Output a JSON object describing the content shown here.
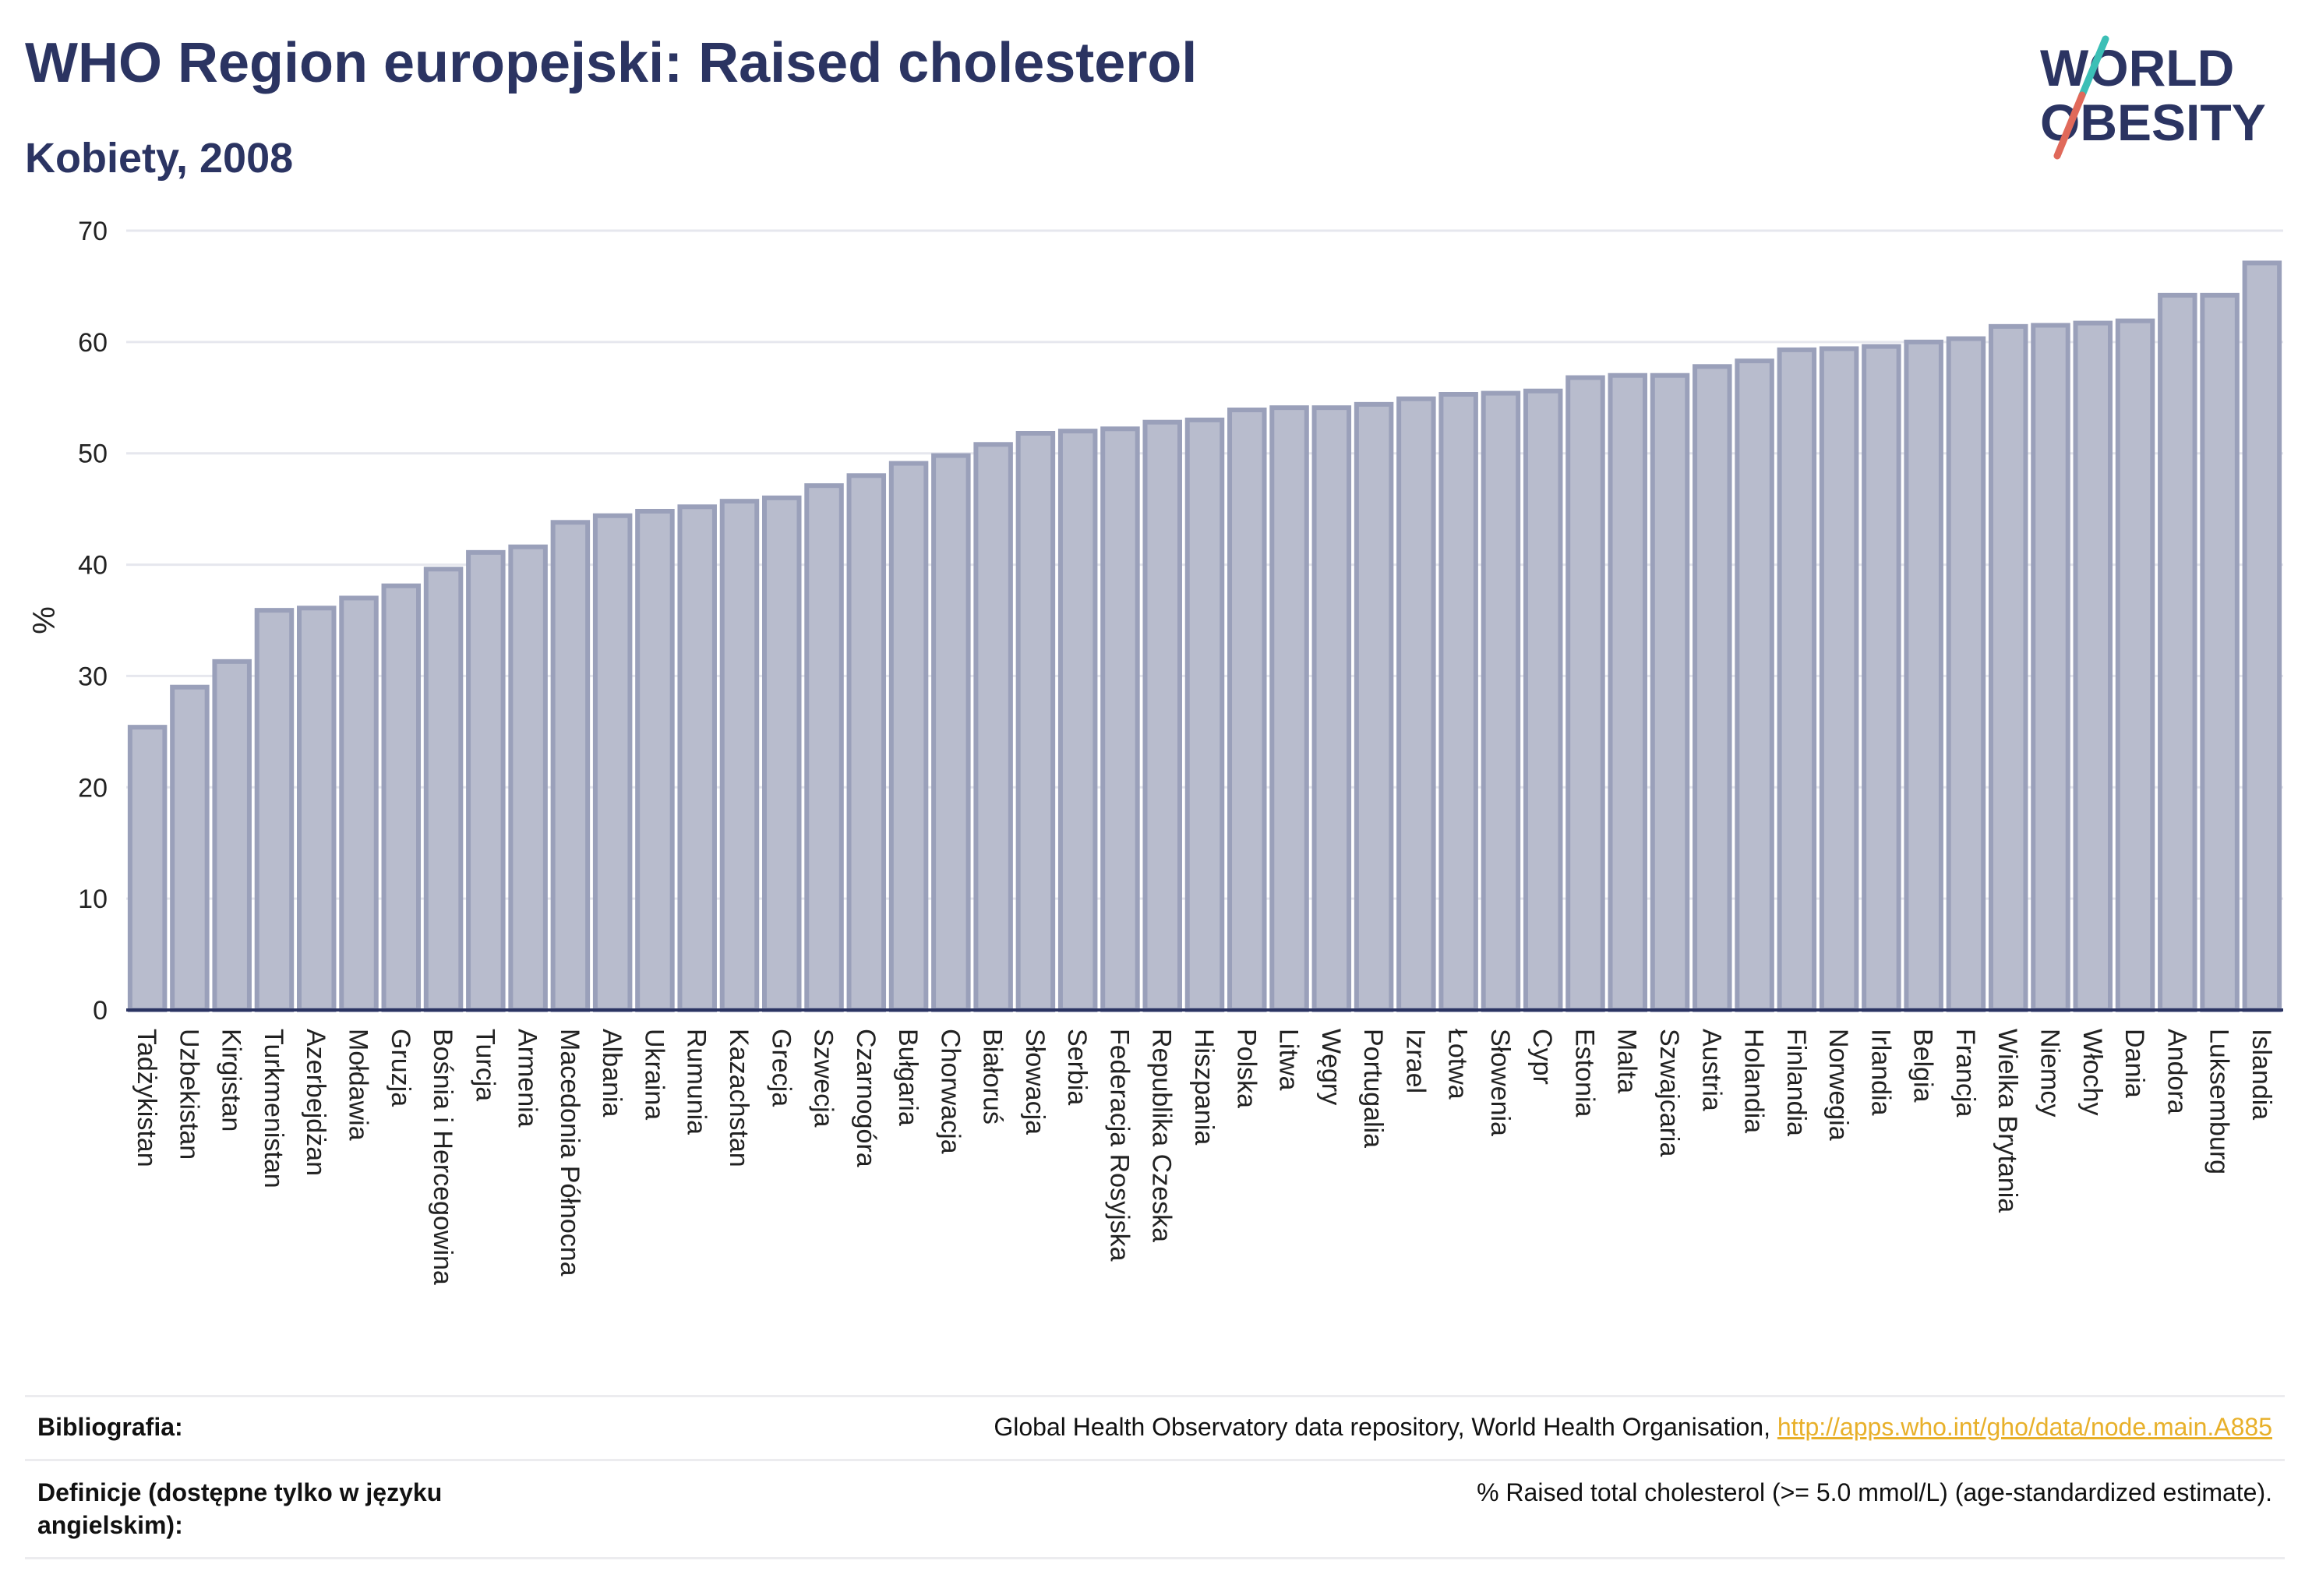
{
  "header": {
    "title": "WHO Region europejski: Raised cholesterol",
    "subtitle": "Kobiety, 2008"
  },
  "logo": {
    "line1": "WORLD",
    "line2": "OBESITY"
  },
  "chart_data": {
    "type": "bar",
    "ylabel": "%",
    "ylim": [
      0,
      70
    ],
    "yticks": [
      0,
      10,
      20,
      30,
      40,
      50,
      60,
      70
    ],
    "grid": true,
    "colors": {
      "bar_fill": "#b8bccd",
      "bar_stroke": "#9aa0ba",
      "axis": "#2b3462",
      "grid": "#e6e7ee"
    },
    "categories": [
      "Tadżykistan",
      "Uzbekistan",
      "Kirgistan",
      "Turkmenistan",
      "Azerbejdżan",
      "Mołdawia",
      "Gruzja",
      "Bośnia i Hercegowina",
      "Turcja",
      "Armenia",
      "Macedonia Północna",
      "Albania",
      "Ukraina",
      "Rumunia",
      "Kazachstan",
      "Grecja",
      "Szwecja",
      "Czarnogóra",
      "Bułgaria",
      "Chorwacja",
      "Białoruś",
      "Słowacja",
      "Serbia",
      "Federacja Rosyjska",
      "Republika Czeska",
      "Hiszpania",
      "Polska",
      "Litwa",
      "Węgry",
      "Portugalia",
      "Izrael",
      "Łotwa",
      "Słowenia",
      "Cypr",
      "Estonia",
      "Malta",
      "Szwajcaria",
      "Austria",
      "Holandia",
      "Finlandia",
      "Norwegia",
      "Irlandia",
      "Belgia",
      "Francja",
      "Wielka Brytania",
      "Niemcy",
      "Włochy",
      "Dania",
      "Andora",
      "Luksemburg",
      "Islandia"
    ],
    "values": [
      25.4,
      29.0,
      31.3,
      35.9,
      36.1,
      37.0,
      38.1,
      39.6,
      41.1,
      41.6,
      43.8,
      44.4,
      44.8,
      45.2,
      45.7,
      46.0,
      47.1,
      48.0,
      49.1,
      49.8,
      50.8,
      51.8,
      52.0,
      52.2,
      52.8,
      53.0,
      53.9,
      54.1,
      54.1,
      54.4,
      54.9,
      55.3,
      55.4,
      55.6,
      56.8,
      57.0,
      57.0,
      57.8,
      58.3,
      59.3,
      59.4,
      59.6,
      60.0,
      60.3,
      61.4,
      61.5,
      61.7,
      61.9,
      64.2,
      64.2,
      67.1
    ]
  },
  "footer": {
    "bibliography_label": "Bibliografia:",
    "bibliography_text": "Global Health Observatory data repository, World Health Organisation, ",
    "bibliography_link": "http://apps.who.int/gho/data/node.main.A885",
    "definitions_label": "Definicje (dostępne tylko w języku angielskim):",
    "definitions_text": "% Raised total cholesterol (>= 5.0 mmol/L) (age-standardized estimate)."
  }
}
